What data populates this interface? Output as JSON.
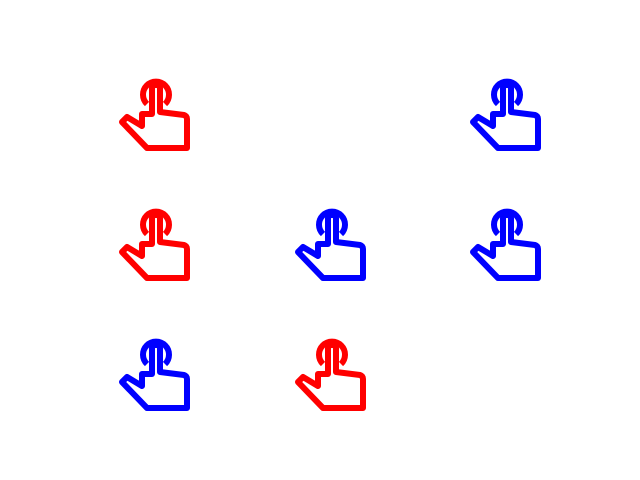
{
  "grid": {
    "rows": 3,
    "columns": 3
  },
  "colors": {
    "red": "#ff0000",
    "blue": "#0000ff"
  },
  "icons": [
    {
      "row": 0,
      "col": 0,
      "color": "red",
      "icon": "tap-hand-icon"
    },
    {
      "row": 0,
      "col": 2,
      "color": "blue",
      "icon": "tap-hand-icon"
    },
    {
      "row": 1,
      "col": 0,
      "color": "red",
      "icon": "tap-hand-icon"
    },
    {
      "row": 1,
      "col": 1,
      "color": "blue",
      "icon": "tap-hand-icon"
    },
    {
      "row": 1,
      "col": 2,
      "color": "blue",
      "icon": "tap-hand-icon"
    },
    {
      "row": 2,
      "col": 0,
      "color": "blue",
      "icon": "tap-hand-icon"
    },
    {
      "row": 2,
      "col": 1,
      "color": "red",
      "icon": "tap-hand-icon"
    }
  ]
}
